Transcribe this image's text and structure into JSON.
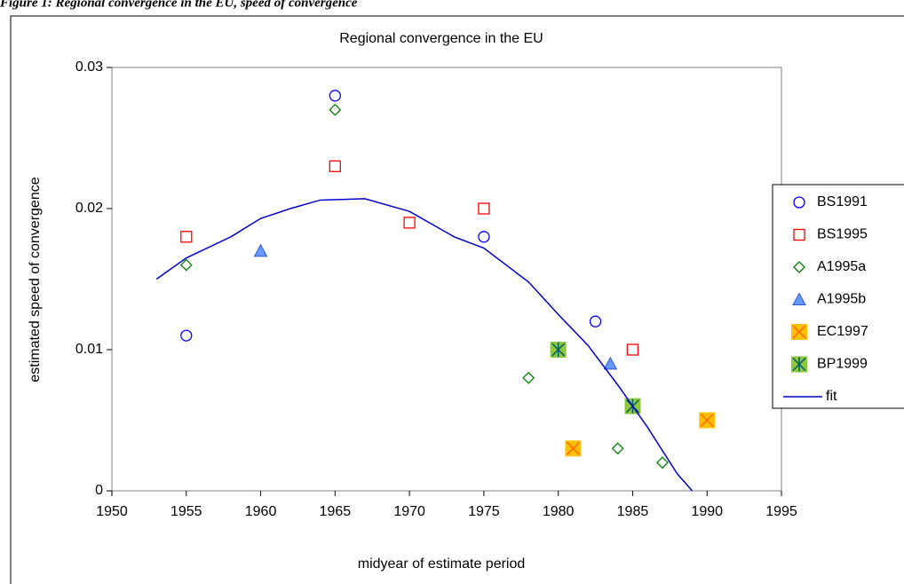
{
  "chart_data": {
    "type": "scatter",
    "caption": "Figure 1: Regional convergence in the EU, speed of convergence",
    "title": "Regional convergence in the EU",
    "x_label": "midyear of estimate period",
    "y_label": "estimated speed of convergence",
    "xlim": [
      1950,
      1995
    ],
    "xticks": [
      1950,
      1955,
      1960,
      1965,
      1970,
      1975,
      1980,
      1985,
      1990,
      1995
    ],
    "ylim": [
      0,
      0.03
    ],
    "yticks": [
      0,
      0.01,
      0.02,
      0.03
    ],
    "legend": "right",
    "series": [
      {
        "name": "BS1991",
        "marker": "circle",
        "color": "#0000ff",
        "x": [
          1955,
          1965,
          1975,
          1982.5
        ],
        "values": [
          0.011,
          0.028,
          0.018,
          0.012
        ]
      },
      {
        "name": "BS1995",
        "marker": "square",
        "color": "#ff0000",
        "x": [
          1955,
          1965,
          1970,
          1975,
          1985
        ],
        "values": [
          0.018,
          0.023,
          0.019,
          0.02,
          0.01
        ]
      },
      {
        "name": "A1995a",
        "marker": "diamond",
        "color": "#008000",
        "x": [
          1955,
          1965,
          1978,
          1984,
          1987
        ],
        "values": [
          0.016,
          0.027,
          0.008,
          0.003,
          0.002
        ]
      },
      {
        "name": "A1995b",
        "marker": "triangle",
        "color": "#6699ff",
        "x": [
          1960,
          1983.5
        ],
        "values": [
          0.017,
          0.009
        ]
      },
      {
        "name": "EC1997",
        "marker": "xbox",
        "color": "#ffc000",
        "x": [
          1981,
          1990
        ],
        "values": [
          0.003,
          0.005
        ]
      },
      {
        "name": "BP1999",
        "marker": "starbox",
        "color": "#8dc63f",
        "x": [
          1980,
          1985
        ],
        "values": [
          0.01,
          0.006
        ]
      },
      {
        "name": "fit",
        "marker": "line",
        "color": "#0000cc",
        "x": [
          1953,
          1955,
          1958,
          1960,
          1962,
          1964,
          1967,
          1970,
          1973,
          1975,
          1978,
          1980,
          1982,
          1984,
          1986,
          1988,
          1989
        ],
        "values": [
          0.015,
          0.0165,
          0.018,
          0.0193,
          0.02,
          0.0206,
          0.0207,
          0.0198,
          0.018,
          0.0172,
          0.0148,
          0.0125,
          0.0103,
          0.0075,
          0.0045,
          0.0012,
          0
        ]
      }
    ]
  }
}
